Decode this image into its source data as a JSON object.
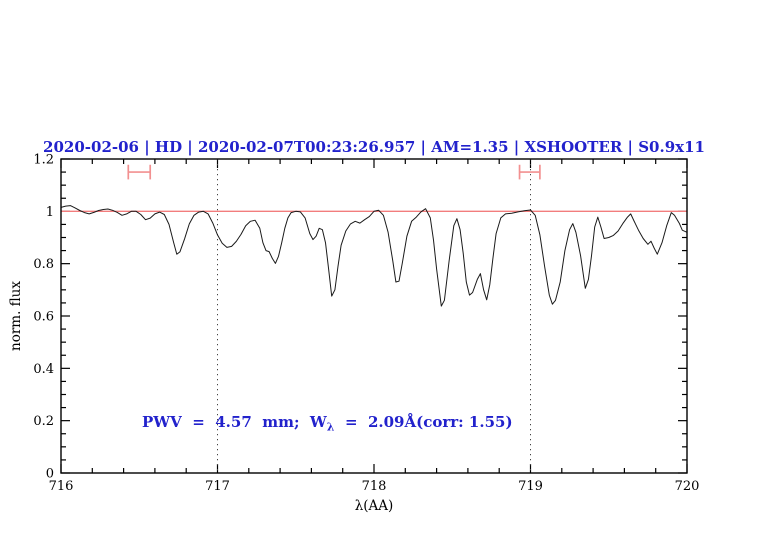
{
  "title": {
    "text": "2020-02-06 | HD | 2020-02-07T00:23:26.957 | AM=1.35 | XSHOOTER | S0.9x11",
    "color": "#2222cc"
  },
  "annotation": {
    "part1": "PWV  =  4.57  mm;  W",
    "sub": "λ",
    "part2": "  =  2.09Å(corr: 1.55)",
    "color": "#2222cc"
  },
  "axes": {
    "x_label": "λ(AA)",
    "y_label": "norm. flux"
  },
  "chart_data": {
    "type": "line",
    "title": "2020-02-06 | HD | 2020-02-07T00:23:26.957 | AM=1.35 | XSHOOTER | S0.9x11",
    "xlabel": "λ(AA)",
    "ylabel": "norm. flux",
    "xlim": [
      716,
      720
    ],
    "ylim": [
      0,
      1.2
    ],
    "grid": false,
    "x_axis": {
      "major_ticks": [
        716,
        717,
        718,
        719,
        720
      ],
      "major_labels": [
        "716",
        "717",
        "718",
        "719",
        "720"
      ],
      "minor_step": 0.2
    },
    "y_axis": {
      "major_ticks": [
        0,
        0.2,
        0.4,
        0.6,
        0.8,
        1.0,
        1.2
      ],
      "major_labels": [
        "0",
        "0.2",
        "0.4",
        "0.6",
        "0.8",
        "1",
        "1.2"
      ],
      "minor_step": 0.05
    },
    "reference_line": {
      "y": 1.0,
      "color": "#f27d7d"
    },
    "dotted_vlines": {
      "x": [
        717,
        719
      ],
      "color": "#444444"
    },
    "range_markers": {
      "color": "#f29090",
      "items": [
        {
          "x1": 716.43,
          "x2": 716.57,
          "y": 1.15,
          "cap_half_height": 0.028
        },
        {
          "x1": 718.93,
          "x2": 719.06,
          "y": 1.15,
          "cap_half_height": 0.028
        }
      ]
    },
    "series": [
      {
        "name": "telluric-spectrum",
        "color": "#1a1a1a",
        "points": [
          [
            716.0,
            1.015
          ],
          [
            716.03,
            1.02
          ],
          [
            716.06,
            1.022
          ],
          [
            716.09,
            1.013
          ],
          [
            716.12,
            1.003
          ],
          [
            716.15,
            0.995
          ],
          [
            716.18,
            0.99
          ],
          [
            716.21,
            0.996
          ],
          [
            716.24,
            1.003
          ],
          [
            716.27,
            1.007
          ],
          [
            716.3,
            1.009
          ],
          [
            716.33,
            1.004
          ],
          [
            716.36,
            0.996
          ],
          [
            716.39,
            0.985
          ],
          [
            716.42,
            0.99
          ],
          [
            716.45,
            1.0
          ],
          [
            716.48,
            1.0
          ],
          [
            716.51,
            0.988
          ],
          [
            716.54,
            0.968
          ],
          [
            716.57,
            0.974
          ],
          [
            716.6,
            0.99
          ],
          [
            716.63,
            0.997
          ],
          [
            716.66,
            0.988
          ],
          [
            716.69,
            0.95
          ],
          [
            716.72,
            0.88
          ],
          [
            716.74,
            0.836
          ],
          [
            716.76,
            0.845
          ],
          [
            716.79,
            0.895
          ],
          [
            716.82,
            0.952
          ],
          [
            716.85,
            0.985
          ],
          [
            716.88,
            0.997
          ],
          [
            716.91,
            1.0
          ],
          [
            716.94,
            0.99
          ],
          [
            716.97,
            0.955
          ],
          [
            717.0,
            0.91
          ],
          [
            717.03,
            0.878
          ],
          [
            717.06,
            0.862
          ],
          [
            717.09,
            0.866
          ],
          [
            717.12,
            0.885
          ],
          [
            717.15,
            0.912
          ],
          [
            717.18,
            0.945
          ],
          [
            717.21,
            0.962
          ],
          [
            717.24,
            0.966
          ],
          [
            717.27,
            0.935
          ],
          [
            717.29,
            0.88
          ],
          [
            717.31,
            0.85
          ],
          [
            717.33,
            0.846
          ],
          [
            717.35,
            0.82
          ],
          [
            717.37,
            0.801
          ],
          [
            717.39,
            0.828
          ],
          [
            717.41,
            0.88
          ],
          [
            717.43,
            0.935
          ],
          [
            717.45,
            0.975
          ],
          [
            717.47,
            0.995
          ],
          [
            717.5,
            1.0
          ],
          [
            717.53,
            0.998
          ],
          [
            717.56,
            0.975
          ],
          [
            717.59,
            0.915
          ],
          [
            717.61,
            0.892
          ],
          [
            717.63,
            0.905
          ],
          [
            717.65,
            0.935
          ],
          [
            717.67,
            0.93
          ],
          [
            717.69,
            0.88
          ],
          [
            717.71,
            0.78
          ],
          [
            717.73,
            0.676
          ],
          [
            717.75,
            0.7
          ],
          [
            717.77,
            0.79
          ],
          [
            717.79,
            0.87
          ],
          [
            717.82,
            0.925
          ],
          [
            717.85,
            0.952
          ],
          [
            717.88,
            0.962
          ],
          [
            717.91,
            0.955
          ],
          [
            717.94,
            0.968
          ],
          [
            717.97,
            0.98
          ],
          [
            718.0,
            1.0
          ],
          [
            718.03,
            1.004
          ],
          [
            718.06,
            0.985
          ],
          [
            718.09,
            0.92
          ],
          [
            718.12,
            0.81
          ],
          [
            718.14,
            0.73
          ],
          [
            718.16,
            0.733
          ],
          [
            718.18,
            0.8
          ],
          [
            718.21,
            0.905
          ],
          [
            718.24,
            0.962
          ],
          [
            718.27,
            0.978
          ],
          [
            718.3,
            0.998
          ],
          [
            718.33,
            1.01
          ],
          [
            718.36,
            0.975
          ],
          [
            718.38,
            0.89
          ],
          [
            718.4,
            0.78
          ],
          [
            718.43,
            0.638
          ],
          [
            718.45,
            0.66
          ],
          [
            718.48,
            0.81
          ],
          [
            718.51,
            0.945
          ],
          [
            718.53,
            0.972
          ],
          [
            718.55,
            0.93
          ],
          [
            718.57,
            0.84
          ],
          [
            718.59,
            0.73
          ],
          [
            718.61,
            0.68
          ],
          [
            718.63,
            0.69
          ],
          [
            718.66,
            0.74
          ],
          [
            718.68,
            0.762
          ],
          [
            718.7,
            0.7
          ],
          [
            718.72,
            0.662
          ],
          [
            718.74,
            0.72
          ],
          [
            718.76,
            0.82
          ],
          [
            718.78,
            0.915
          ],
          [
            718.81,
            0.975
          ],
          [
            718.84,
            0.99
          ],
          [
            718.88,
            0.993
          ],
          [
            718.92,
            0.998
          ],
          [
            718.96,
            1.002
          ],
          [
            719.0,
            1.005
          ],
          [
            719.03,
            0.985
          ],
          [
            719.06,
            0.91
          ],
          [
            719.09,
            0.79
          ],
          [
            719.12,
            0.68
          ],
          [
            719.14,
            0.645
          ],
          [
            719.16,
            0.66
          ],
          [
            719.19,
            0.73
          ],
          [
            719.22,
            0.85
          ],
          [
            719.25,
            0.93
          ],
          [
            719.27,
            0.953
          ],
          [
            719.29,
            0.92
          ],
          [
            719.32,
            0.83
          ],
          [
            719.35,
            0.706
          ],
          [
            719.37,
            0.74
          ],
          [
            719.39,
            0.83
          ],
          [
            719.41,
            0.94
          ],
          [
            719.43,
            0.978
          ],
          [
            719.45,
            0.94
          ],
          [
            719.47,
            0.896
          ],
          [
            719.5,
            0.9
          ],
          [
            719.53,
            0.908
          ],
          [
            719.56,
            0.925
          ],
          [
            719.59,
            0.953
          ],
          [
            719.62,
            0.978
          ],
          [
            719.64,
            0.99
          ],
          [
            719.66,
            0.965
          ],
          [
            719.69,
            0.928
          ],
          [
            719.72,
            0.896
          ],
          [
            719.75,
            0.874
          ],
          [
            719.77,
            0.886
          ],
          [
            719.79,
            0.86
          ],
          [
            719.81,
            0.836
          ],
          [
            719.84,
            0.88
          ],
          [
            719.87,
            0.945
          ],
          [
            719.9,
            0.995
          ],
          [
            719.92,
            0.985
          ],
          [
            719.95,
            0.955
          ],
          [
            719.97,
            0.928
          ],
          [
            720.0,
            0.92
          ]
        ]
      }
    ]
  }
}
